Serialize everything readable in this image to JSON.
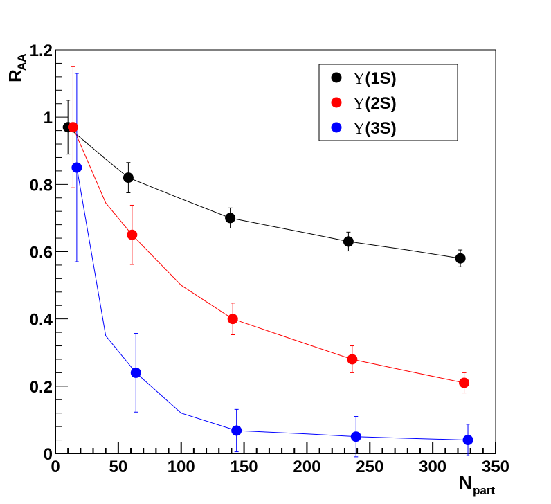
{
  "chart_data": {
    "type": "scatter",
    "title": "",
    "xlabel": {
      "main": "N",
      "sub": "part"
    },
    "ylabel": {
      "main": "R",
      "sub": "AA"
    },
    "xlim": [
      0,
      350
    ],
    "ylim": [
      0,
      1.2
    ],
    "x_ticks": [
      "0",
      "50",
      "100",
      "150",
      "200",
      "250",
      "300",
      "350"
    ],
    "x_tick_values": [
      0,
      50,
      100,
      150,
      200,
      250,
      300,
      350
    ],
    "y_ticks": [
      "0",
      "0.2",
      "0.4",
      "0.6",
      "0.8",
      "1",
      "1.2"
    ],
    "y_tick_values": [
      0,
      0.2,
      0.4,
      0.6,
      0.8,
      1.0,
      1.2
    ],
    "legend_position": "top-right",
    "series": [
      {
        "name": "Υ(1S)",
        "symbol": "Υ",
        "label": "(1S)",
        "color": "#000000",
        "points": [
          {
            "x": 10,
            "y": 0.97,
            "err": 0.08
          },
          {
            "x": 58,
            "y": 0.82,
            "err": 0.045
          },
          {
            "x": 139,
            "y": 0.7,
            "err": 0.03
          },
          {
            "x": 233,
            "y": 0.63,
            "err": 0.028
          },
          {
            "x": 322,
            "y": 0.58,
            "err": 0.025
          }
        ],
        "curve": [
          [
            10,
            0.97
          ],
          [
            40,
            0.875
          ],
          [
            58,
            0.82
          ],
          [
            100,
            0.757
          ],
          [
            139,
            0.7
          ],
          [
            200,
            0.655
          ],
          [
            233,
            0.63
          ],
          [
            280,
            0.605
          ],
          [
            322,
            0.58
          ]
        ]
      },
      {
        "name": "Υ(2S)",
        "symbol": "Υ",
        "label": "(2S)",
        "color": "#ff0000",
        "points": [
          {
            "x": 14,
            "y": 0.97,
            "err": 0.18
          },
          {
            "x": 61,
            "y": 0.65,
            "err": 0.088
          },
          {
            "x": 141,
            "y": 0.4,
            "err": 0.047
          },
          {
            "x": 236,
            "y": 0.28,
            "err": 0.04
          },
          {
            "x": 325,
            "y": 0.21,
            "err": 0.03
          }
        ],
        "curve": [
          [
            14,
            0.97
          ],
          [
            40,
            0.745
          ],
          [
            61,
            0.65
          ],
          [
            100,
            0.5
          ],
          [
            141,
            0.4
          ],
          [
            200,
            0.325
          ],
          [
            236,
            0.28
          ],
          [
            280,
            0.245
          ],
          [
            325,
            0.21
          ]
        ]
      },
      {
        "name": "Υ(3S)",
        "symbol": "Υ",
        "label": "(3S)",
        "color": "#0000ff",
        "points": [
          {
            "x": 17,
            "y": 0.85,
            "err": 0.28
          },
          {
            "x": 64,
            "y": 0.24,
            "err": 0.117
          },
          {
            "x": 144,
            "y": 0.068,
            "err": 0.063
          },
          {
            "x": 239,
            "y": 0.05,
            "err": 0.06
          },
          {
            "x": 328,
            "y": 0.04,
            "err": 0.047
          }
        ],
        "curve": [
          [
            17,
            0.85
          ],
          [
            40,
            0.35
          ],
          [
            64,
            0.24
          ],
          [
            100,
            0.12
          ],
          [
            144,
            0.068
          ],
          [
            200,
            0.058
          ],
          [
            239,
            0.05
          ],
          [
            280,
            0.045
          ],
          [
            328,
            0.04
          ]
        ]
      }
    ]
  }
}
